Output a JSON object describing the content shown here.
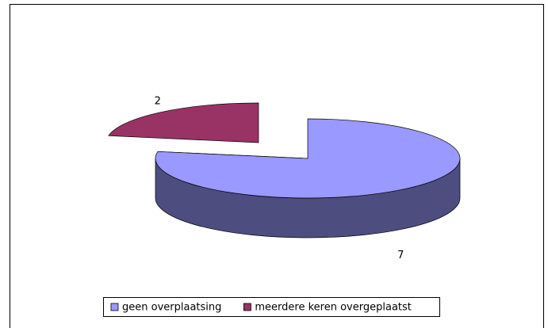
{
  "chart_data": {
    "type": "pie3d",
    "categories": [
      "geen overplaatsing",
      "meerdere keren overgeplaatst"
    ],
    "values": [
      7,
      2
    ],
    "colors": [
      "#9999ff",
      "#993366"
    ],
    "side_colors": [
      "#4d4d80",
      "#4d1a33"
    ],
    "legend": "bottom"
  }
}
